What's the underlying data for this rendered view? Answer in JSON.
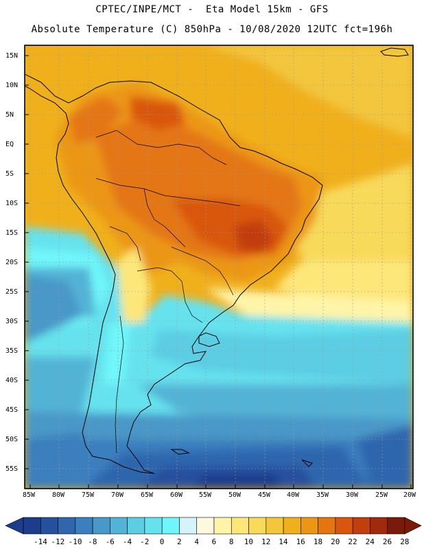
{
  "header": {
    "line1": "CPTEC/INPE/MCT -  Eta Model 15km - GFS",
    "line2": "Absolute Temperature (C) 850hPa - 10/08/2020 12UTC fct=196h"
  },
  "axes": {
    "lat_labels": [
      "15N",
      "10N",
      "5N",
      "EQ",
      "5S",
      "10S",
      "15S",
      "20S",
      "25S",
      "30S",
      "35S",
      "40S",
      "45S",
      "50S",
      "55S"
    ],
    "lon_labels": [
      "85W",
      "80W",
      "75W",
      "70W",
      "65W",
      "60W",
      "55W",
      "50W",
      "45W",
      "40W",
      "35W",
      "30W",
      "25W",
      "20W"
    ]
  },
  "colorbar": {
    "labels": [
      "-14",
      "-12",
      "-10",
      "-8",
      "-6",
      "-4",
      "-2",
      "0",
      "2",
      "4",
      "6",
      "8",
      "10",
      "12",
      "14",
      "16",
      "18",
      "20",
      "22",
      "24",
      "26",
      "28"
    ],
    "colors": [
      "#1c3c8c",
      "#25509e",
      "#2f66ae",
      "#3b7fbe",
      "#4898c8",
      "#52b3d6",
      "#5ccde3",
      "#66e2ee",
      "#6ff6fb",
      "#d4f4fa",
      "#fff8e0",
      "#fff4a8",
      "#fde77a",
      "#f8d95a",
      "#f3c63c",
      "#f0b01c",
      "#ec9618",
      "#e47612",
      "#d9560e",
      "#c23e0c",
      "#a02a0a",
      "#7a1a08"
    ]
  }
}
